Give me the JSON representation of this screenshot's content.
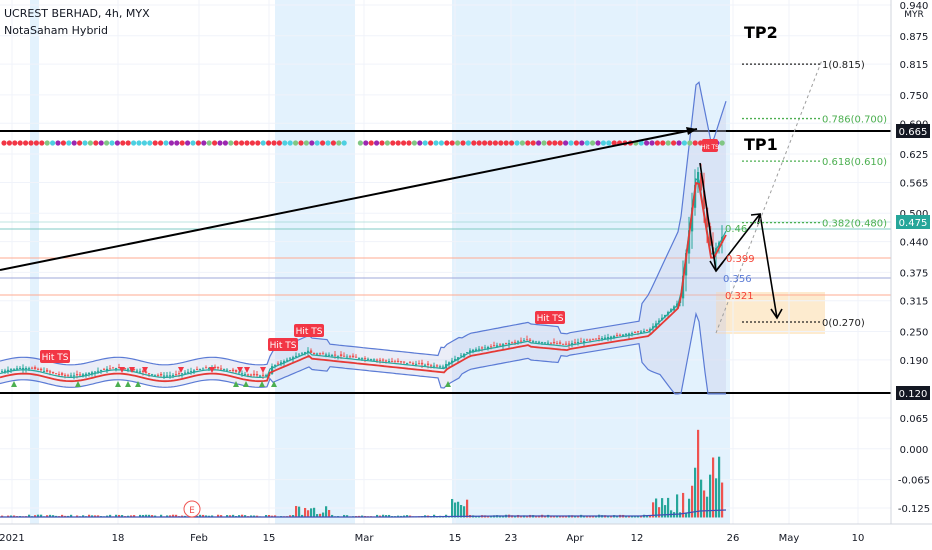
{
  "header": {
    "symbol_line": "UCREST BERHAD, 4h, MYX",
    "indicator_line": "NotaSaham Hybrid"
  },
  "currency": "MYR",
  "price_axis_ticks": [
    "0.940",
    "0.875",
    "0.815",
    "0.750",
    "0.690",
    "0.625",
    "0.565",
    "0.500",
    "0.440",
    "0.375",
    "0.315",
    "0.250",
    "0.190",
    "0.065",
    "0.000",
    "-0.065",
    "-0.125"
  ],
  "time_axis_ticks": [
    "2021",
    "18",
    "Feb",
    "15",
    "Mar",
    "15",
    "23",
    "Apr",
    "12",
    "26",
    "May",
    "10"
  ],
  "price_tags": [
    {
      "label": "0.665",
      "value": 0.665,
      "style": "dark"
    },
    {
      "label": "0.475",
      "value": 0.475,
      "style": "green"
    },
    {
      "label": "0.120",
      "value": 0.12,
      "style": "dark"
    }
  ],
  "targets": [
    {
      "label": "TP2",
      "value": 0.9
    },
    {
      "label": "TP1",
      "value": 0.63
    }
  ],
  "fib_levels": [
    {
      "label": "1(0.815)",
      "value": 0.815,
      "color": "#222222"
    },
    {
      "label": "0.786(0.700)",
      "value": 0.7,
      "color": "#4caf50"
    },
    {
      "label": "0.618(0.610)",
      "value": 0.61,
      "color": "#4caf50"
    },
    {
      "label": "0.382(0.480)",
      "value": 0.48,
      "color": "#4caf50"
    },
    {
      "label": "0(0.270)",
      "value": 0.27,
      "color": "#222222"
    }
  ],
  "level_labels": [
    {
      "label": "0.46",
      "value": 0.463,
      "color": "#4caf50"
    },
    {
      "label": "0.399",
      "value": 0.399,
      "color": "#f44336"
    },
    {
      "label": "0.356",
      "value": 0.356,
      "color": "#5b7bd5"
    },
    {
      "label": "0.321",
      "value": 0.321,
      "color": "#f44336"
    }
  ],
  "signal_badges": [
    "Hit TS",
    "Hit TS",
    "Hit TS",
    "Hit TS",
    "Hit TS"
  ],
  "earnings_marker": "E",
  "colors": {
    "up": "#26a69a",
    "down": "#ef5350",
    "band": "#5b7bd5",
    "sma": "#e53935",
    "dot_red": "#f23645",
    "dot_cyan": "#4dd0e1",
    "dot_green": "#81c784",
    "dot_purple": "#9c27b0",
    "highlight": "#e3f2fd",
    "zone": "#fde7c7"
  },
  "chart_data": {
    "type": "line",
    "title": "UCREST BERHAD, 4h, MYX",
    "ylabel": "MYR",
    "ylim": [
      -0.15,
      0.96
    ],
    "x": [
      "2021-01-04",
      "2021-01-18",
      "2021-02-01",
      "2021-02-15",
      "2021-03-01",
      "2021-03-15",
      "2021-03-23",
      "2021-04-01",
      "2021-04-12",
      "2021-04-22",
      "2021-04-26"
    ],
    "series": [
      {
        "values": [
          0.165,
          0.16,
          0.16,
          0.17,
          0.18,
          0.18,
          0.225,
          0.23,
          0.27,
          0.6,
          0.475
        ]
      }
    ],
    "horizontal_lines": [
      0.665,
      0.12
    ],
    "volume_ylim": [
      -0.15,
      0.12
    ]
  }
}
